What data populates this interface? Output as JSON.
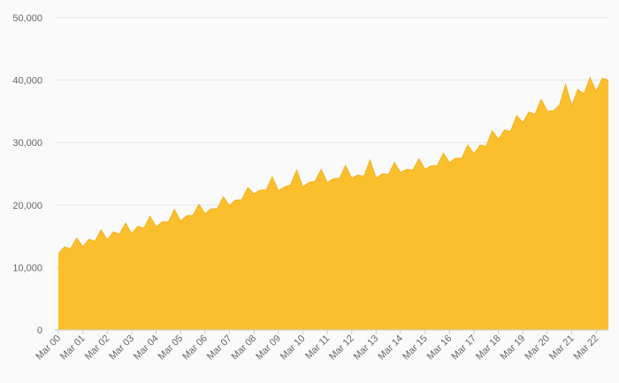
{
  "chart_data": {
    "type": "area",
    "title": "",
    "xlabel": "",
    "ylabel": "",
    "ylim": [
      0,
      50000
    ],
    "yticks": [
      {
        "value": 0,
        "label": "0"
      },
      {
        "value": 10000,
        "label": "10,000"
      },
      {
        "value": 20000,
        "label": "20,000"
      },
      {
        "value": 30000,
        "label": "30,000"
      },
      {
        "value": 40000,
        "label": "40,000"
      },
      {
        "value": 50000,
        "label": "50,000"
      }
    ],
    "xticks": [
      "Mar 00",
      "Mar 01",
      "Mar 02",
      "Mar 03",
      "Mar 04",
      "Mar 05",
      "Mar 06",
      "Mar 07",
      "Mar 08",
      "Mar 09",
      "Mar 10",
      "Mar 11",
      "Mar 12",
      "Mar 13",
      "Mar 14",
      "Mar 15",
      "Mar 16",
      "Mar 17",
      "Mar 18",
      "Mar 19",
      "Mar 20",
      "Mar 21",
      "Mar 22"
    ],
    "grid": true,
    "colors": {
      "fill": "#fbbf2e",
      "line": "#f6b21a"
    },
    "series": [
      {
        "values": [
          12200,
          13300,
          13000,
          14700,
          13300,
          14500,
          14200,
          16000,
          14400,
          15700,
          15300,
          17100,
          15400,
          16600,
          16300,
          18200,
          16500,
          17300,
          17300,
          19300,
          17400,
          18300,
          18300,
          20100,
          18600,
          19400,
          19400,
          21300,
          19900,
          20800,
          20800,
          22800,
          21800,
          22400,
          22400,
          24500,
          22300,
          22900,
          23200,
          25600,
          22900,
          23600,
          23800,
          25700,
          23600,
          24200,
          24300,
          26300,
          24300,
          24800,
          24600,
          27200,
          24300,
          25000,
          24900,
          26800,
          25200,
          25700,
          25600,
          27400,
          25700,
          26300,
          26300,
          28300,
          26800,
          27500,
          27500,
          29600,
          28200,
          29600,
          29400,
          31900,
          30500,
          32000,
          31800,
          34300,
          33200,
          34900,
          34500,
          36900,
          35000,
          35100,
          36000,
          39300,
          35900,
          38500,
          37800,
          40400,
          38200,
          40300,
          40000
        ]
      }
    ]
  }
}
